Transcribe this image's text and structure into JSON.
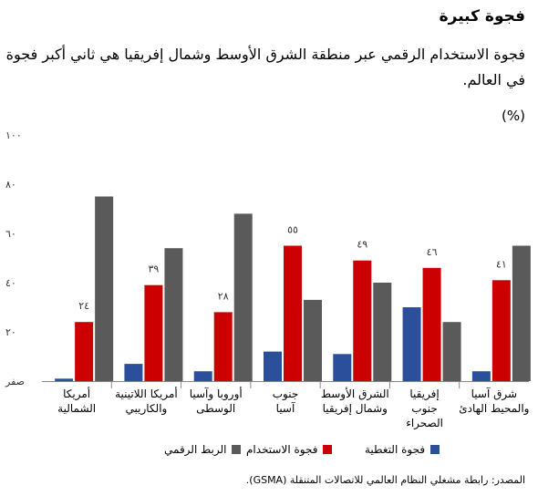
{
  "header": {
    "title": "فجوة كبيرة",
    "subtitle": "فجوة الاستخدام الرقمي عبر منطقة الشرق الأوسط وشمال إفريقيا هي ثاني أكبر فجوة في العالم.",
    "unit": "(%)"
  },
  "footer": {
    "source": "المصدر: رابطة مشغلي النظام العالمي للاتصالات المتنقلة (GSMA)."
  },
  "colors": {
    "coverage": "#2b4f9b",
    "usage": "#cc0000",
    "connectivity": "#5a5a5a"
  },
  "chart_data": {
    "type": "bar",
    "title": "",
    "xlabel": "",
    "ylabel": "(%)",
    "ylim": [
      0,
      100
    ],
    "y_ticks": [
      "صفر",
      "٢٠",
      "٤٠",
      "٦٠",
      "٨٠",
      "١٠٠"
    ],
    "grid": false,
    "legend_position": "bottom",
    "categories": [
      [
        "أمريكا",
        "الشمالية"
      ],
      [
        "أمريكا اللاتينية",
        "والكاريبي"
      ],
      [
        "أوروبا وآسيا",
        "الوسطى"
      ],
      [
        "جنوب",
        "آسيا"
      ],
      [
        "الشرق الأوسط",
        "وشمال إفريقيا"
      ],
      [
        "إفريقيا",
        "جنوب",
        "الصحراء"
      ],
      [
        "شرق آسيا",
        "والمحيط الهادئ"
      ]
    ],
    "series": [
      {
        "name": "فجوة التغطية",
        "color": "#2b4f9b",
        "values": [
          1,
          7,
          4,
          12,
          11,
          30,
          4
        ]
      },
      {
        "name": "فجوة الاستخدام",
        "color": "#cc0000",
        "values": [
          24,
          39,
          28,
          55,
          49,
          46,
          41
        ]
      },
      {
        "name": "الربط الرقمي",
        "color": "#5a5a5a",
        "values": [
          75,
          54,
          68,
          33,
          40,
          24,
          55
        ]
      }
    ],
    "data_labels": [
      "٢٤",
      "٣٩",
      "٢٨",
      "٥٥",
      "٤٩",
      "٤٦",
      "٤١"
    ]
  }
}
